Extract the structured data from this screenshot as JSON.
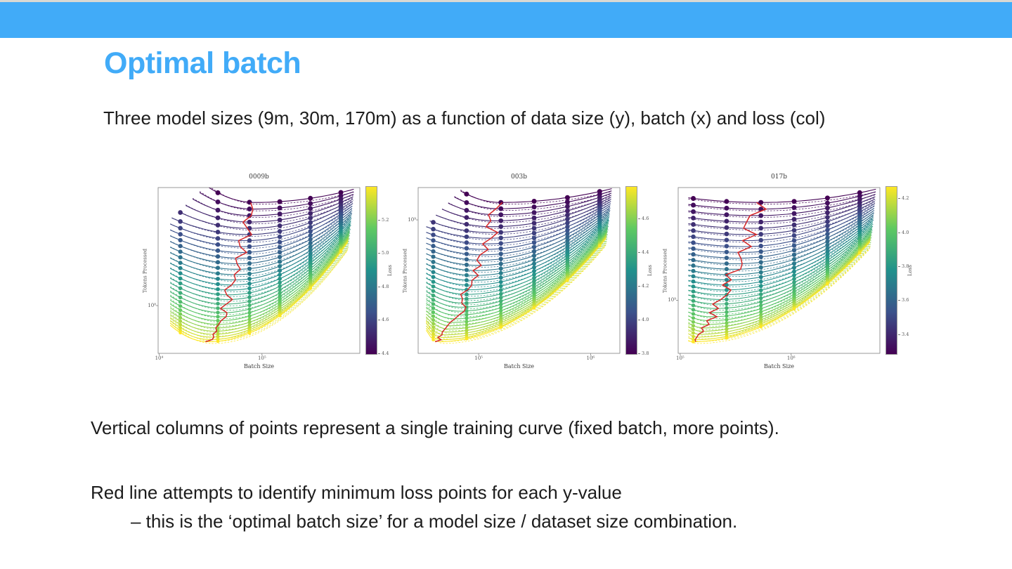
{
  "slide": {
    "title": "Optimal batch",
    "subtitle": "Three model sizes (9m, 30m, 170m) as a function of data size (y), batch (x) and loss (col)",
    "notes": {
      "note1": "Vertical columns of points represent a single training curve (fixed batch, more points).",
      "note2": "Red line attempts to identify minimum loss points for each y-value",
      "note3": "– this is the ‘optimal batch size’ for a model size / dataset size combination."
    }
  },
  "style": {
    "accent_blue": "#41abf8",
    "top_bar_color": "#41abf8",
    "top_edge_color": "#d9d9d3",
    "text_color": "#1c1c1c",
    "red_line_color": "#d62728",
    "colormap_viridis": [
      "#440154",
      "#3b528b",
      "#21918c",
      "#5ec962",
      "#fde725"
    ]
  },
  "chart_data": [
    {
      "type": "line",
      "title": "0009b",
      "xlabel": "Batch Size",
      "ylabel": "Tokens Processed",
      "x_scale": "log",
      "y_scale": "log",
      "x_ticks": [
        {
          "label": "10⁴",
          "pos": 0.005
        },
        {
          "label": "10⁵",
          "pos": 0.515
        }
      ],
      "y_ticks": [
        {
          "label": "10⁸",
          "pos": 0.712
        }
      ],
      "colorbar": {
        "label": "Loss",
        "min": 4.4,
        "max": 5.4,
        "ticks": [
          {
            "label": "5.2",
            "pos": 0.198
          },
          {
            "label": "5.0",
            "pos": 0.396
          },
          {
            "label": "4.8",
            "pos": 0.594
          },
          {
            "label": "4.6",
            "pos": 0.792
          },
          {
            "label": "4.4",
            "pos": 0.99
          }
        ]
      },
      "n_curves": 30,
      "dot_columns": [
        0.11,
        0.296,
        0.453,
        0.603,
        0.755,
        0.906
      ],
      "red_line": {
        "top_x": 0.48,
        "bottom_x": 0.25
      },
      "curve": {
        "dip_frac": 0.1,
        "xstart": 0.06,
        "top_xstart_inset": 0.18,
        "xend": 0.97,
        "right_end_factor": 0.38
      }
    },
    {
      "type": "line",
      "title": "003b",
      "xlabel": "Batch Size",
      "ylabel": "Tokens Processed",
      "x_scale": "log",
      "y_scale": "log",
      "x_ticks": [
        {
          "label": "10⁵",
          "pos": 0.3
        },
        {
          "label": "10⁶",
          "pos": 0.855
        }
      ],
      "y_ticks": [
        {
          "label": "10⁹",
          "pos": 0.195
        }
      ],
      "colorbar": {
        "label": "Loss",
        "min": 3.79,
        "max": 4.79,
        "ticks": [
          {
            "label": "4.6",
            "pos": 0.19
          },
          {
            "label": "4.4",
            "pos": 0.39
          },
          {
            "label": "4.2",
            "pos": 0.59
          },
          {
            "label": "4.0",
            "pos": 0.79
          },
          {
            "label": "3.8",
            "pos": 0.99
          }
        ]
      },
      "n_curves": 32,
      "dot_columns": [
        0.075,
        0.24,
        0.41,
        0.575,
        0.74,
        0.9
      ],
      "red_line": {
        "top_x": 0.41,
        "bottom_x": 0.1
      },
      "curve": {
        "dip_frac": 0.07,
        "xstart": 0.04,
        "top_xstart_inset": 0.17,
        "xend": 0.96,
        "right_end_factor": 0.36
      }
    },
    {
      "type": "line",
      "title": "017b",
      "xlabel": "Batch Size",
      "ylabel": "Tokens Processed",
      "x_scale": "log",
      "y_scale": "log",
      "x_ticks": [
        {
          "label": "10⁵",
          "pos": 0.01
        },
        {
          "label": "10⁶",
          "pos": 0.56
        }
      ],
      "y_ticks": [
        {
          "label": "10⁹",
          "pos": 0.68
        }
      ],
      "colorbar": {
        "label": "Loss",
        "min": 3.28,
        "max": 4.27,
        "ticks": [
          {
            "label": "4.2",
            "pos": 0.071
          },
          {
            "label": "4.0",
            "pos": 0.273
          },
          {
            "label": "3.8",
            "pos": 0.475
          },
          {
            "label": "3.6",
            "pos": 0.677
          },
          {
            "label": "3.4",
            "pos": 0.879
          }
        ]
      },
      "n_curves": 30,
      "dot_columns": [
        0.075,
        0.24,
        0.41,
        0.575,
        0.74,
        0.9
      ],
      "red_line": {
        "top_x": 0.41,
        "bottom_x": 0.07
      },
      "curve": {
        "dip_frac": 0.028,
        "xstart": 0.05,
        "top_xstart_inset": 0.0,
        "xend": 0.98,
        "right_end_factor": 0.38
      }
    }
  ]
}
